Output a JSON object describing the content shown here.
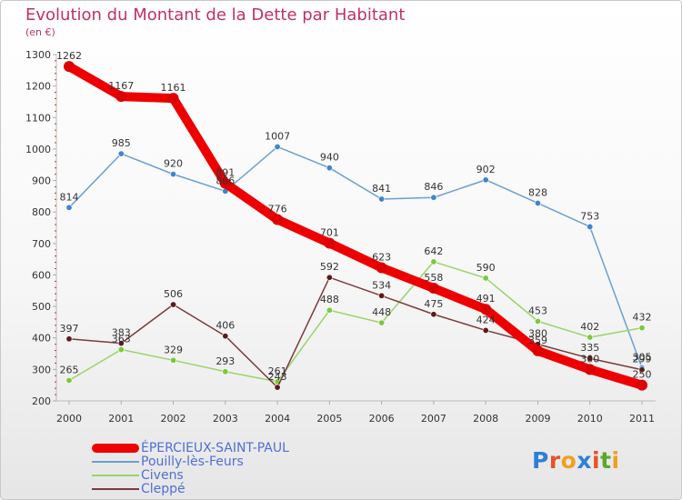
{
  "title": "Evolution du Montant de la Dette par Habitant",
  "subtitle": "(en €)",
  "logo": {
    "text": "Proxiti",
    "letter_colors": [
      "#2f7fd6",
      "#e8512a",
      "#f0a020",
      "#2f7fd6",
      "#e8512a",
      "#5aa92e",
      "#f0a020"
    ]
  },
  "chart_data": {
    "type": "line",
    "categories": [
      "2000",
      "2001",
      "2002",
      "2003",
      "2004",
      "2005",
      "2006",
      "2007",
      "2008",
      "2009",
      "2010",
      "2011"
    ],
    "ylim": [
      200,
      1300
    ],
    "yticks": [
      "200",
      "300",
      "400",
      "500",
      "600",
      "700",
      "800",
      "900",
      "1000",
      "1100",
      "1200",
      "1300"
    ],
    "grid": false,
    "legend_position": "bottom-left",
    "series": [
      {
        "name": "ÉPERCIEUX-SAINT-PAUL",
        "color": "#ee0000",
        "point_color": "#dd0000",
        "emphasis": true,
        "values": [
          1262,
          1167,
          1161,
          891,
          776,
          701,
          623,
          558,
          491,
          359,
          300,
          250
        ],
        "labels": [
          "1262",
          "1167",
          "1161",
          "891",
          "776",
          "701",
          "623",
          "558",
          "491",
          "359",
          "300",
          "250"
        ]
      },
      {
        "name": "Pouilly-lès-Feurs",
        "color": "#6a9fd4",
        "point_color": "#3f86cc",
        "emphasis": false,
        "values": [
          814,
          985,
          920,
          866,
          1007,
          940,
          841,
          846,
          902,
          828,
          753,
          305
        ],
        "labels": [
          "814",
          "985",
          "920",
          "866",
          "1007",
          "940",
          "841",
          "846",
          "902",
          "828",
          "753",
          "305"
        ]
      },
      {
        "name": "Civens",
        "color": "#9ad46a",
        "point_color": "#7cc83c",
        "emphasis": false,
        "values": [
          265,
          363,
          329,
          293,
          261,
          488,
          448,
          642,
          590,
          453,
          402,
          432
        ],
        "labels": [
          "265",
          "363",
          "329",
          "293",
          "261",
          "488",
          "448",
          "642",
          "590",
          "453",
          "402",
          "432"
        ]
      },
      {
        "name": "Cleppé",
        "color": "#7a3a3a",
        "point_color": "#5c1a1a",
        "emphasis": false,
        "values": [
          397,
          383,
          506,
          406,
          243,
          592,
          534,
          475,
          424,
          380,
          335,
          299
        ],
        "labels": [
          "397",
          "383",
          "506",
          "406",
          "243",
          "592",
          "534",
          "475",
          "424",
          "380",
          "335",
          "299"
        ]
      }
    ]
  }
}
